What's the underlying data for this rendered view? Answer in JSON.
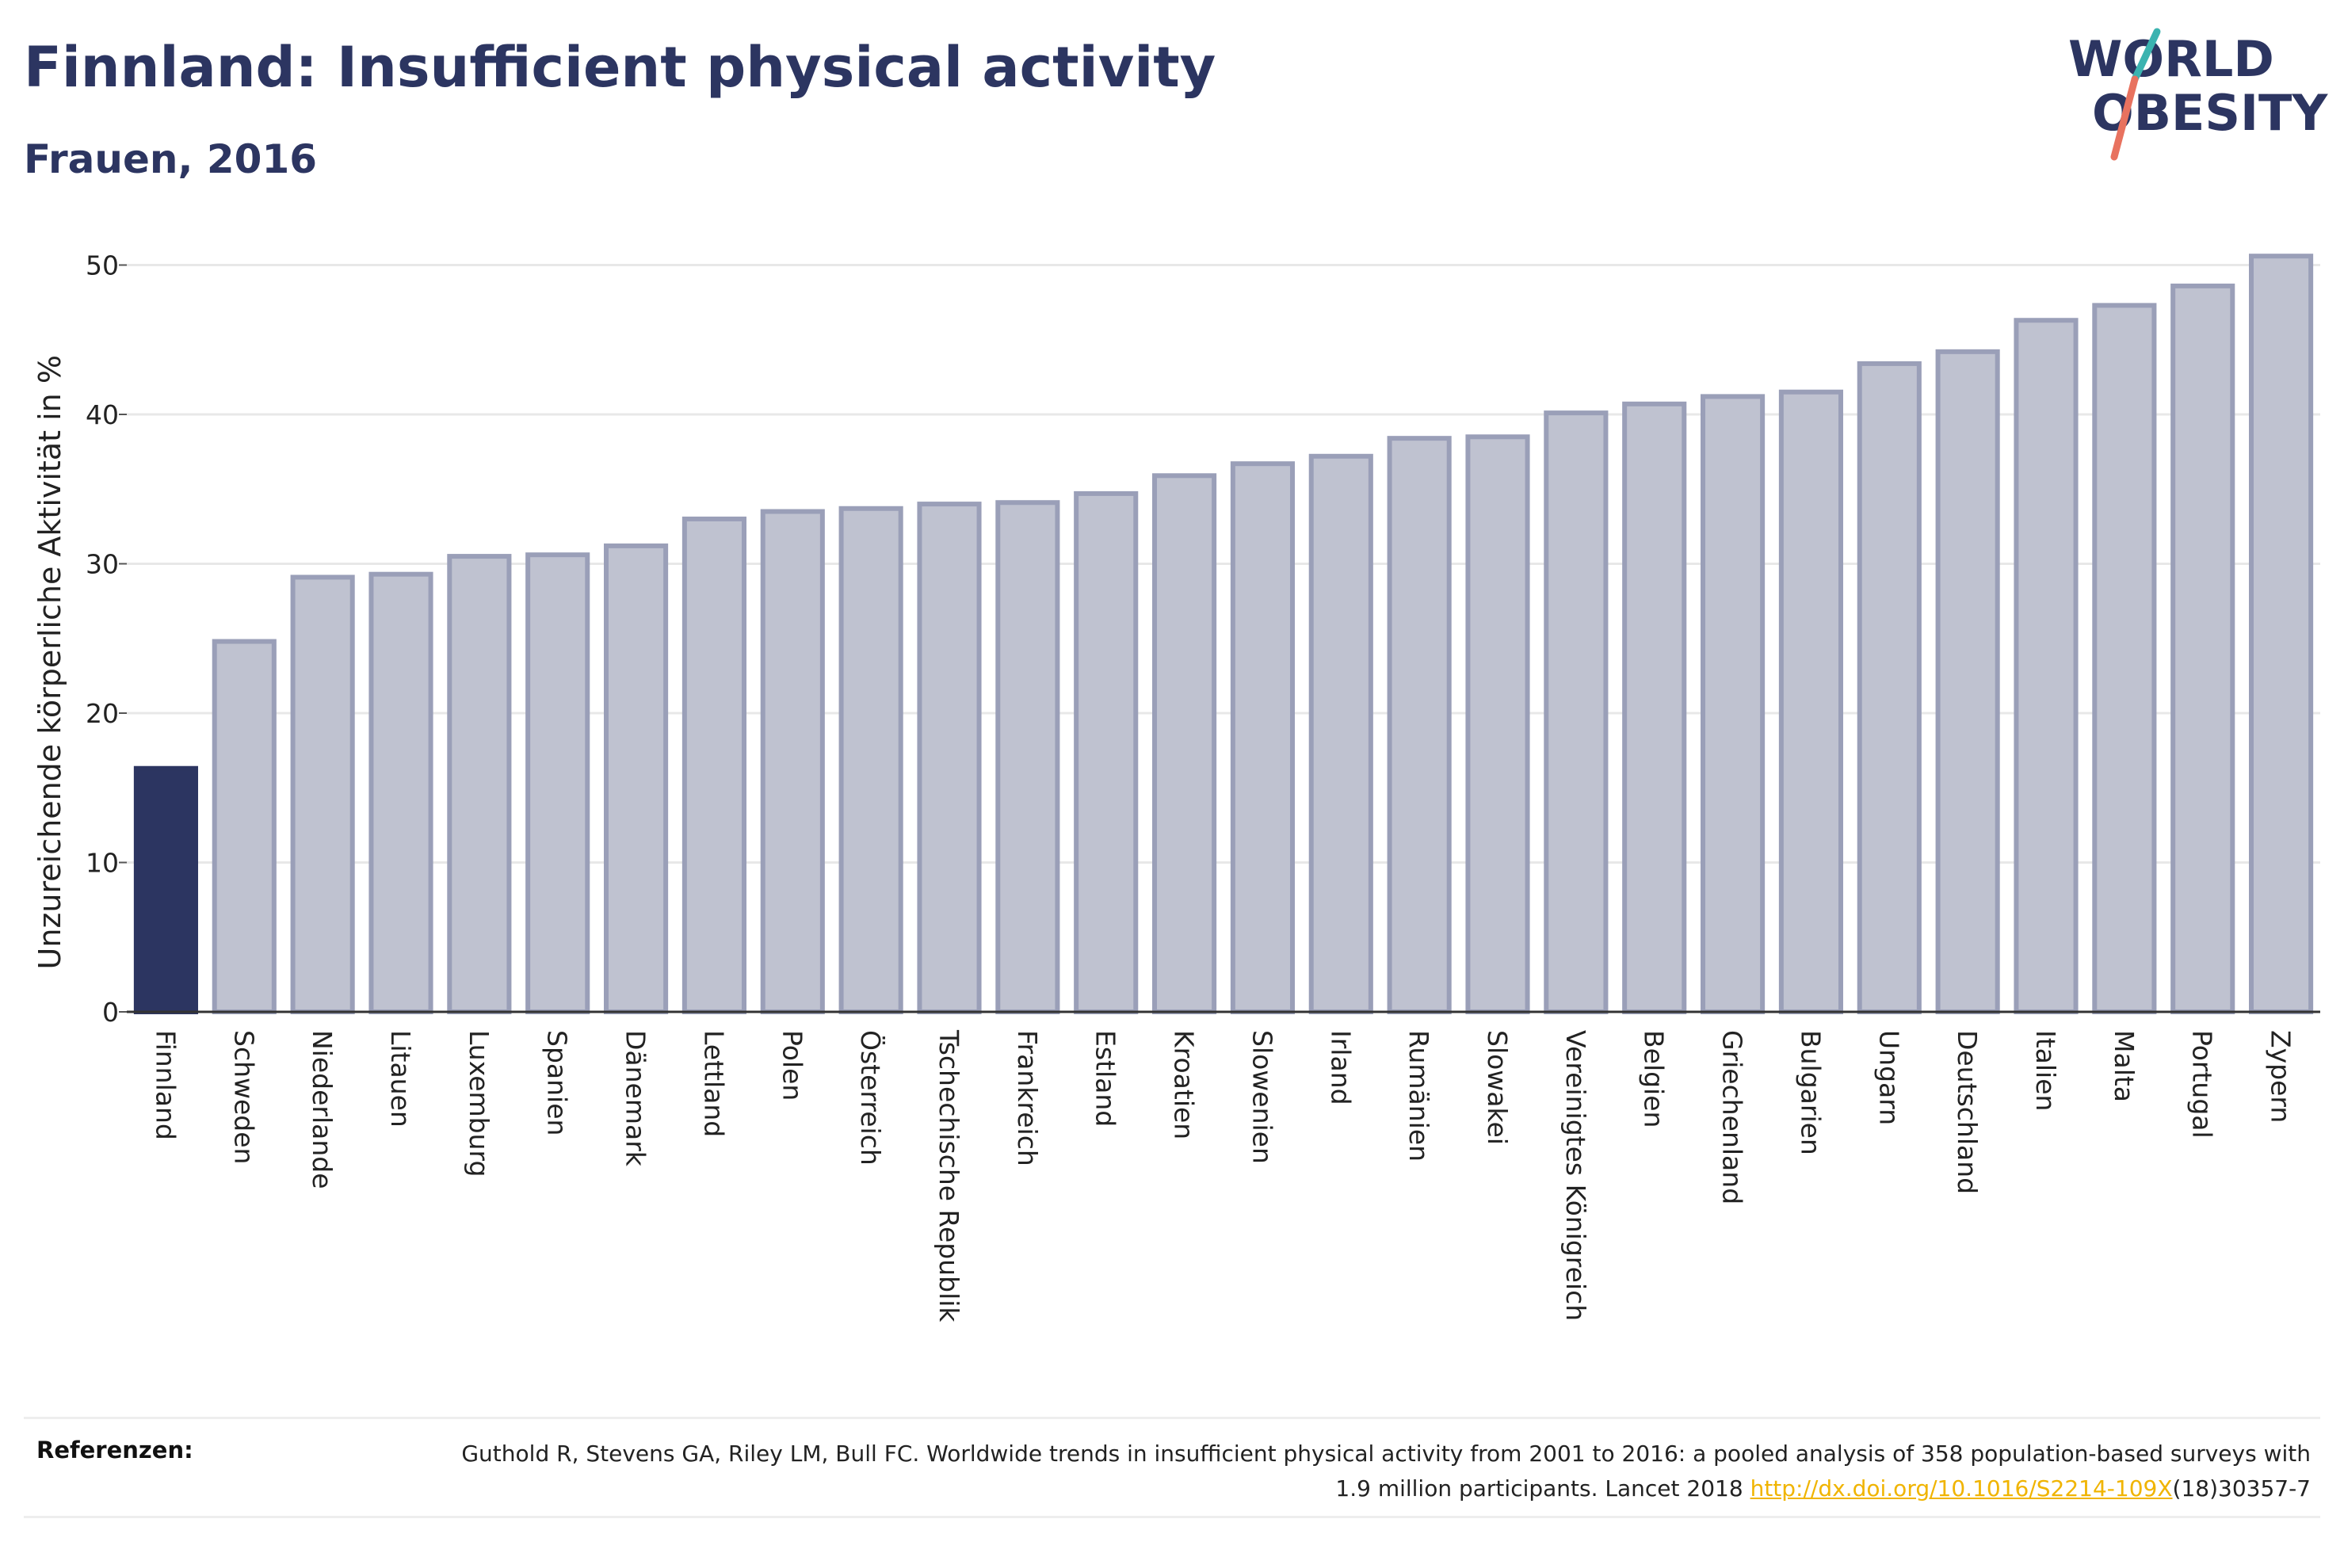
{
  "header": {
    "title": "Finnland: Insufficient physical activity",
    "subtitle": "Frauen, 2016"
  },
  "logo": {
    "line1": "WORLD",
    "line2": "OBESITY"
  },
  "colors": {
    "highlight": "#2c3561",
    "bar_fill": "#bfc2d0",
    "bar_stroke": "#9a9fb8",
    "grid": "#e8e8e8"
  },
  "chart_data": {
    "type": "bar",
    "ylabel": "Unzureichende körperliche Aktivität in %",
    "ylim": [
      0,
      52
    ],
    "yticks": [
      0,
      10,
      20,
      30,
      40,
      50
    ],
    "grid": true,
    "highlight_category": "Finnland",
    "categories": [
      "Finnland",
      "Schweden",
      "Niederlande",
      "Litauen",
      "Luxemburg",
      "Spanien",
      "Dänemark",
      "Lettland",
      "Polen",
      "Österreich",
      "Tschechische Republik",
      "Frankreich",
      "Estland",
      "Kroatien",
      "Slowenien",
      "Irland",
      "Rumänien",
      "Slowakei",
      "Vereinigtes Königreich",
      "Belgien",
      "Griechenland",
      "Bulgarien",
      "Ungarn",
      "Deutschland",
      "Italien",
      "Malta",
      "Portugal",
      "Zypern"
    ],
    "values": [
      16.3,
      24.8,
      29.1,
      29.3,
      30.5,
      30.6,
      31.2,
      33.0,
      33.5,
      33.7,
      34.0,
      34.1,
      34.7,
      35.9,
      36.7,
      37.2,
      38.4,
      38.5,
      40.1,
      40.7,
      41.2,
      41.5,
      43.4,
      44.2,
      46.3,
      47.3,
      48.6,
      50.6
    ]
  },
  "footer": {
    "label": "Referenzen:",
    "text_part1": "Guthold R, Stevens GA, Riley LM, Bull FC. Worldwide trends in insufficient physical activity from 2001 to 2016: a pooled analysis of 358 population-based surveys with 1.9 million participants. Lancet 2018 ",
    "link_text": "http://dx.doi.org/10.1016/S2214-109X",
    "text_part2": "(18)30357-7"
  }
}
